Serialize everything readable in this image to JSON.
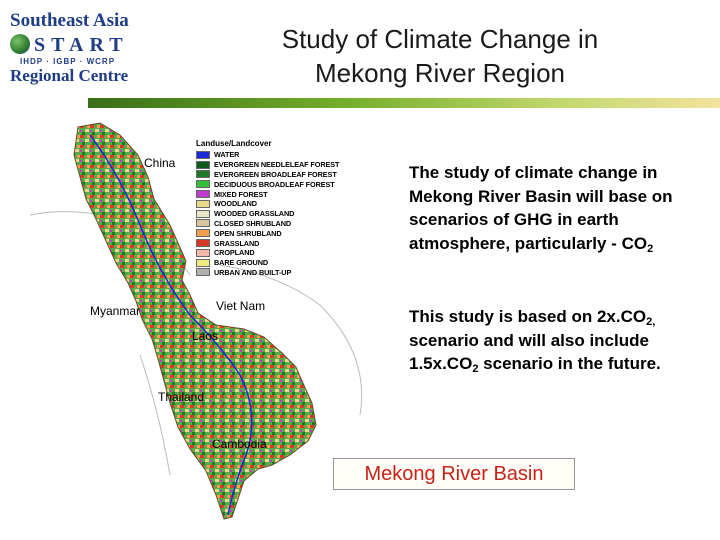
{
  "logo": {
    "line1": "Southeast Asia",
    "start_letters": [
      "S",
      "T",
      "A",
      "R",
      "T"
    ],
    "sublabel": "IHDP · IGBP · WCRP",
    "line2": "Regional Centre"
  },
  "title": {
    "line1": "Study of Climate Change in",
    "line2": "Mekong River Region"
  },
  "map": {
    "labels": {
      "china": "China",
      "myanmar": "Myanmar",
      "vietnam": "Viet Nam",
      "laos": "Laos",
      "thailand": "Thailand",
      "cambodia": "Cambodia"
    },
    "legend": {
      "title": "Landuse/Landcover",
      "items": [
        {
          "label": "WATER",
          "color": "#1a2ad6"
        },
        {
          "label": "EVERGREEN NEEDLELEAF FOREST",
          "color": "#0f5a1d"
        },
        {
          "label": "EVERGREEN BROADLEAF FOREST",
          "color": "#1f7a26"
        },
        {
          "label": "DECIDUOUS BROADLEAF FOREST",
          "color": "#33c13a"
        },
        {
          "label": "MIXED FOREST",
          "color": "#c03ad0"
        },
        {
          "label": "WOODLAND",
          "color": "#e9d98a"
        },
        {
          "label": "WOODED GRASSLAND",
          "color": "#e8e6c7"
        },
        {
          "label": "CLOSED SHRUBLAND",
          "color": "#d8c6a2"
        },
        {
          "label": "OPEN SHRUBLAND",
          "color": "#f0a04e"
        },
        {
          "label": "GRASSLAND",
          "color": "#d63a24"
        },
        {
          "label": "CROPLAND",
          "color": "#f2b8a8"
        },
        {
          "label": "BARE GROUND",
          "color": "#f1e884"
        },
        {
          "label": "URBAN AND BUILT-UP",
          "color": "#b0b0b0"
        }
      ]
    }
  },
  "paragraph1": {
    "text": "The study of climate change in Mekong River Basin will base on scenarios of GHG  in earth atmosphere, particularly - CO",
    "sub": "2"
  },
  "paragraph2": {
    "part1": "This study is based on 2x.CO",
    "sub1": "2,",
    "part2": " scenario and will also include 1.5x.CO",
    "sub2": "2",
    "part3": " scenario in the future."
  },
  "caption": "Mekong River Basin",
  "colors": {
    "title_text": "#1a1a1a",
    "caption_text": "#c4231b",
    "logo_blue": "#1f3d86",
    "header_bar_start": "#3a6e18",
    "header_bar_end": "#f3e39e"
  },
  "icons": {
    "logo": "start-globe-icon",
    "map": "mekong-landcover-map"
  }
}
